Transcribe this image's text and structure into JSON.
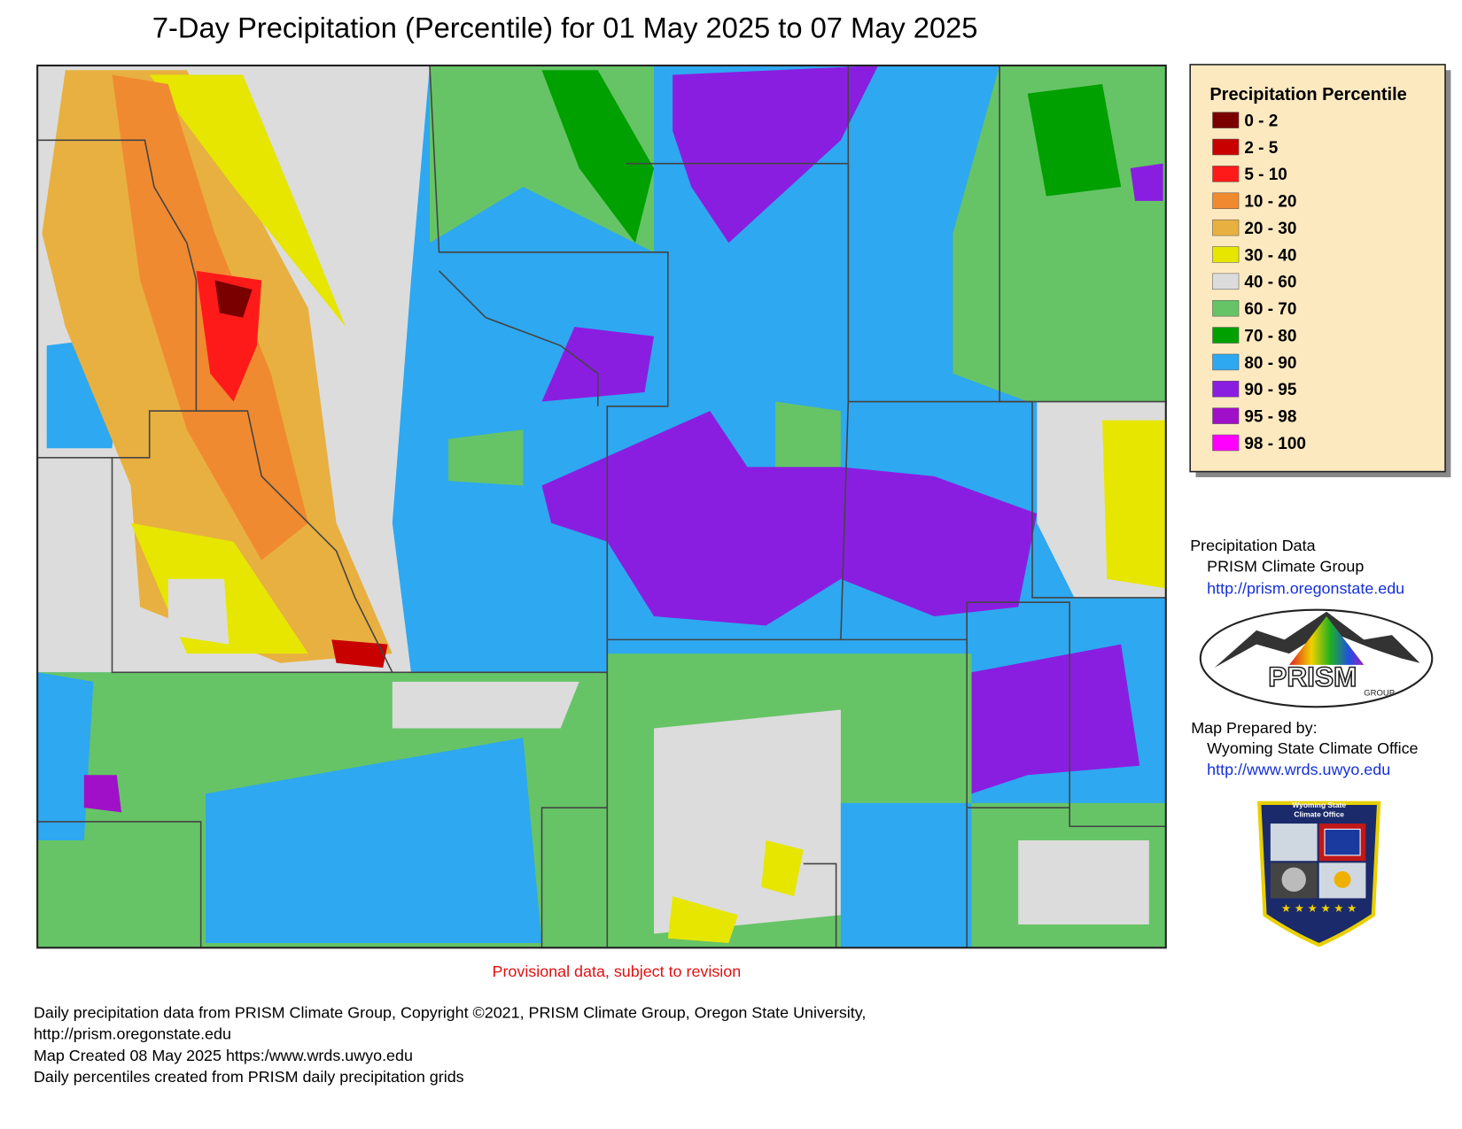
{
  "title": "7-Day Precipitation (Percentile) for 01 May 2025 to 07 May 2025",
  "legend": {
    "title": "Precipitation Percentile",
    "items": [
      {
        "label": "0 - 2",
        "color": "#7a0000"
      },
      {
        "label": "2 - 5",
        "color": "#c80000"
      },
      {
        "label": "5 - 10",
        "color": "#ff1a1a"
      },
      {
        "label": "10 - 20",
        "color": "#f08a30"
      },
      {
        "label": "20 - 30",
        "color": "#e8b040"
      },
      {
        "label": "30 - 40",
        "color": "#e6e600"
      },
      {
        "label": "40 - 60",
        "color": "#dcdcdc"
      },
      {
        "label": "60 - 70",
        "color": "#66c466"
      },
      {
        "label": "70 - 80",
        "color": "#00a000"
      },
      {
        "label": "80 - 90",
        "color": "#2ea8f0"
      },
      {
        "label": "90 - 95",
        "color": "#8a1ee0"
      },
      {
        "label": "95 - 98",
        "color": "#a010c8"
      },
      {
        "label": "98 - 100",
        "color": "#ff00ff"
      }
    ]
  },
  "sidebar": {
    "data_heading": "Precipitation Data",
    "data_source": "PRISM Climate Group",
    "data_url": "http://prism.oregonstate.edu",
    "prism_logo": "PRISM",
    "prism_logo_sub": "GROUP",
    "prepared_heading": "Map Prepared by:",
    "prepared_by": "Wyoming State Climate Office",
    "prepared_url": "http://www.wrds.uwyo.edu",
    "shield_line1": "Wyoming State",
    "shield_line2": "Climate Office"
  },
  "provisional": "Provisional data, subject to revision",
  "footer": [
    "Daily precipitation data from PRISM Climate Group, Copyright ©2021, PRISM Climate Group, Oregon State University,",
    "http://prism.oregonstate.edu",
    "Map Created 08 May 2025 https:/www.wrds.uwyo.edu",
    "Daily percentiles created from PRISM daily precipitation grids"
  ]
}
